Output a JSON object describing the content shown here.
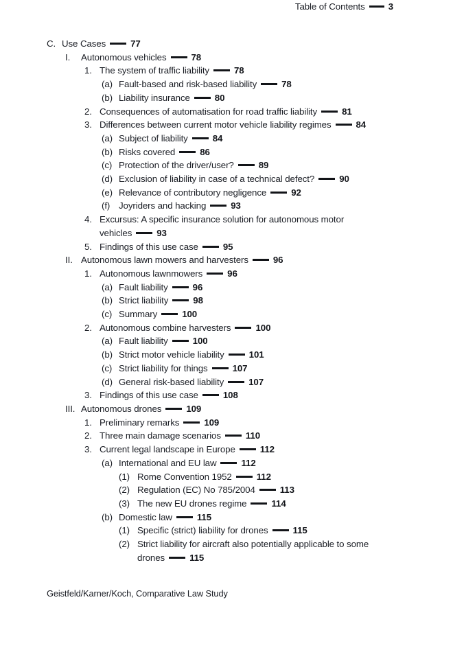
{
  "colors": {
    "background": "#ffffff",
    "text": "#1a1d24",
    "dash_and_numbers": "#121418"
  },
  "header": {
    "title": "Table of Contents",
    "page_number": "3"
  },
  "footer": {
    "text": "Geistfeld/Karner/Koch, Comparative Law Study"
  },
  "toc": {
    "entries": [
      {
        "level": 0,
        "label": "C.",
        "text": "Use Cases",
        "page": "77"
      },
      {
        "level": 1,
        "label": "I.",
        "text": "Autonomous vehicles",
        "page": "78"
      },
      {
        "level": 2,
        "label": "1.",
        "text": "The system of traffic liability",
        "page": "78"
      },
      {
        "level": 3,
        "label": "(a)",
        "text": "Fault-based and risk-based liability",
        "page": "78"
      },
      {
        "level": 3,
        "label": "(b)",
        "text": "Liability insurance",
        "page": "80"
      },
      {
        "level": 2,
        "label": "2.",
        "text": "Consequences of automatisation for road traffic liability",
        "page": "81"
      },
      {
        "level": 2,
        "label": "3.",
        "text": "Differences between current motor vehicle liability regimes",
        "page": "84"
      },
      {
        "level": 3,
        "label": "(a)",
        "text": "Subject of liability",
        "page": "84"
      },
      {
        "level": 3,
        "label": "(b)",
        "text": "Risks covered",
        "page": "86"
      },
      {
        "level": 3,
        "label": "(c)",
        "text": "Protection of the driver/user?",
        "page": "89"
      },
      {
        "level": 3,
        "label": "(d)",
        "text": "Exclusion of liability in case of a technical defect?",
        "page": "90"
      },
      {
        "level": 3,
        "label": "(e)",
        "text": "Relevance of contributory negligence",
        "page": "92"
      },
      {
        "level": 3,
        "label": "(f)",
        "text": "Joyriders and hacking",
        "page": "93"
      },
      {
        "level": 2,
        "label": "4.",
        "text": "Excursus: A specific insurance solution for autonomous motor\nvehicles",
        "page": "93"
      },
      {
        "level": 2,
        "label": "5.",
        "text": "Findings of this use case",
        "page": "95"
      },
      {
        "level": 1,
        "label": "II.",
        "text": "Autonomous lawn mowers and harvesters",
        "page": "96"
      },
      {
        "level": 2,
        "label": "1.",
        "text": "Autonomous lawnmowers",
        "page": "96"
      },
      {
        "level": 3,
        "label": "(a)",
        "text": "Fault liability",
        "page": "96"
      },
      {
        "level": 3,
        "label": "(b)",
        "text": "Strict liability",
        "page": "98"
      },
      {
        "level": 3,
        "label": "(c)",
        "text": "Summary",
        "page": "100"
      },
      {
        "level": 2,
        "label": "2.",
        "text": "Autonomous combine harvesters",
        "page": "100"
      },
      {
        "level": 3,
        "label": "(a)",
        "text": "Fault liability",
        "page": "100"
      },
      {
        "level": 3,
        "label": "(b)",
        "text": "Strict motor vehicle liability",
        "page": "101"
      },
      {
        "level": 3,
        "label": "(c)",
        "text": "Strict liability for things",
        "page": "107"
      },
      {
        "level": 3,
        "label": "(d)",
        "text": "General risk-based liability",
        "page": "107"
      },
      {
        "level": 2,
        "label": "3.",
        "text": "Findings of this use case",
        "page": "108"
      },
      {
        "level": 1,
        "label": "III.",
        "text": "Autonomous drones",
        "page": "109"
      },
      {
        "level": 2,
        "label": "1.",
        "text": "Preliminary remarks",
        "page": "109"
      },
      {
        "level": 2,
        "label": "2.",
        "text": "Three main damage scenarios",
        "page": "110"
      },
      {
        "level": 2,
        "label": "3.",
        "text": "Current legal landscape in Europe",
        "page": "112"
      },
      {
        "level": 3,
        "label": "(a)",
        "text": "International and EU law",
        "page": "112"
      },
      {
        "level": 4,
        "label": "(1)",
        "text": "Rome Convention 1952",
        "page": "112"
      },
      {
        "level": 4,
        "label": "(2)",
        "text": "Regulation (EC) No 785/2004",
        "page": "113"
      },
      {
        "level": 4,
        "label": "(3)",
        "text": "The new EU drones regime",
        "page": "114"
      },
      {
        "level": 3,
        "label": "(b)",
        "text": "Domestic law",
        "page": "115"
      },
      {
        "level": 4,
        "label": "(1)",
        "text": "Specific (strict) liability for drones",
        "page": "115"
      },
      {
        "level": 4,
        "label": "(2)",
        "text": "Strict liability for aircraft also potentially applicable to some\ndrones",
        "page": "115"
      }
    ]
  }
}
